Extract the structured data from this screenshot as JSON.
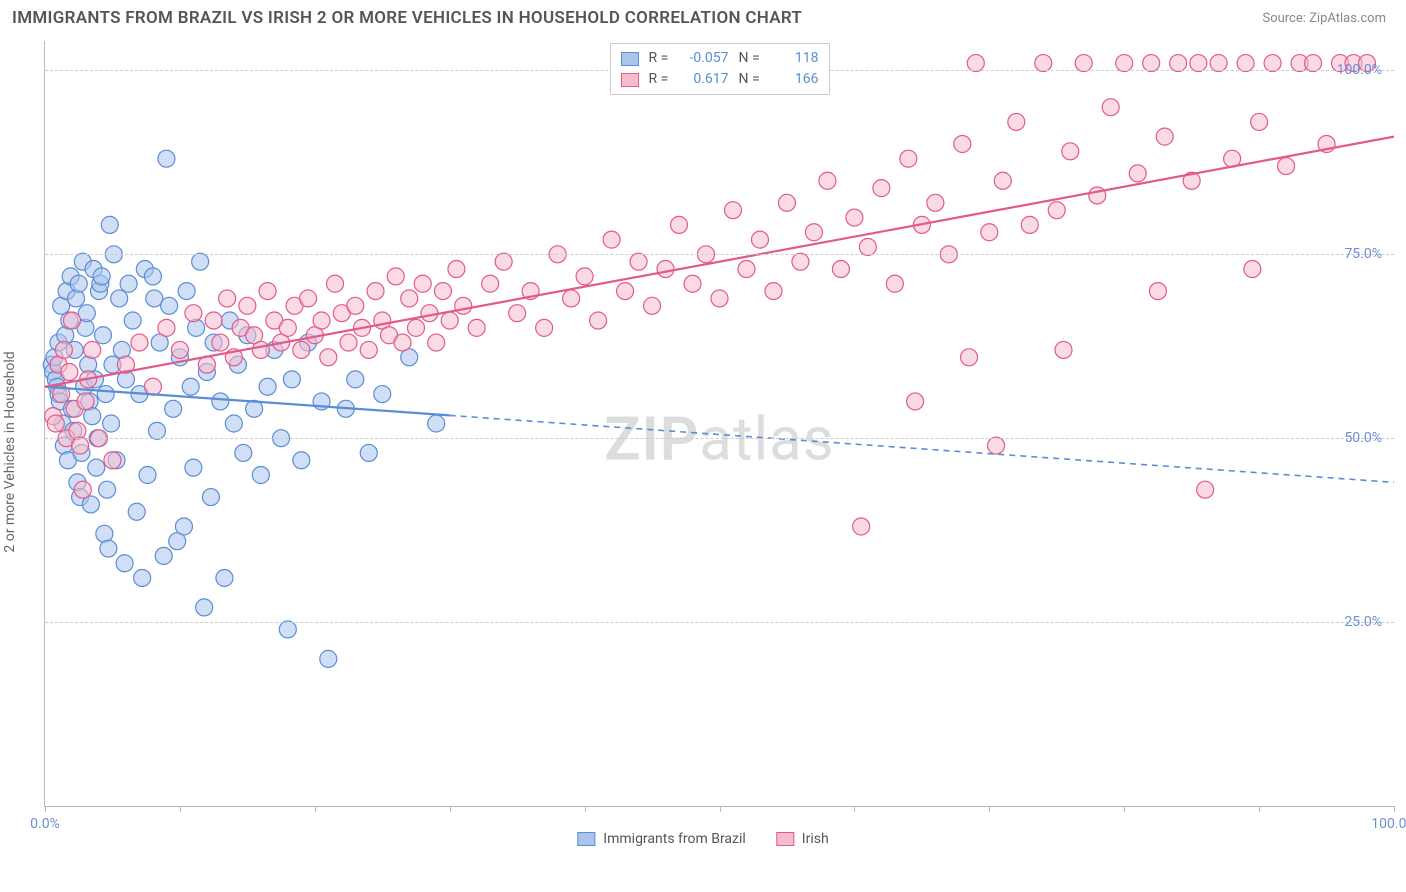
{
  "title": "IMMIGRANTS FROM BRAZIL VS IRISH 2 OR MORE VEHICLES IN HOUSEHOLD CORRELATION CHART",
  "source": "Source: ZipAtlas.com",
  "watermark_bold": "ZIP",
  "watermark_rest": "atlas",
  "ylabel": "2 or more Vehicles in Household",
  "chart": {
    "type": "scatter",
    "background_color": "#ffffff",
    "grid_color": "#cccccc",
    "axis_color": "#bbbbbb",
    "tick_label_color": "#6b8fd4",
    "xlim": [
      0,
      100
    ],
    "ylim": [
      0,
      104
    ],
    "yticks": [
      25,
      50,
      75,
      100
    ],
    "ytick_labels": [
      "25.0%",
      "50.0%",
      "75.0%",
      "100.0%"
    ],
    "xticks": [
      0,
      10,
      20,
      30,
      40,
      50,
      60,
      70,
      80,
      90,
      100
    ],
    "xtick_labels": {
      "0": "0.0%",
      "100": "100.0%"
    },
    "marker_radius": 8.5,
    "marker_opacity": 0.55,
    "marker_stroke_width": 1.2,
    "trend_line_width": 2.2
  },
  "series": [
    {
      "key": "brazil",
      "label": "Immigrants from Brazil",
      "fill": "#a9c5ec",
      "stroke": "#5b8dd6",
      "R_label": "R =",
      "R": "-0.057",
      "N_label": "N =",
      "N": "118",
      "trend": {
        "x1": 0,
        "y1": 57,
        "x2": 100,
        "y2": 44,
        "solid_until_x": 30
      },
      "points": [
        [
          0.5,
          60
        ],
        [
          0.6,
          59
        ],
        [
          0.7,
          61
        ],
        [
          0.8,
          58
        ],
        [
          0.9,
          57
        ],
        [
          1.0,
          56
        ],
        [
          1.0,
          63
        ],
        [
          1.1,
          55
        ],
        [
          1.2,
          68
        ],
        [
          1.3,
          52
        ],
        [
          1.4,
          49
        ],
        [
          1.5,
          64
        ],
        [
          1.6,
          70
        ],
        [
          1.7,
          47
        ],
        [
          1.8,
          66
        ],
        [
          1.9,
          72
        ],
        [
          2.0,
          54
        ],
        [
          2.1,
          51
        ],
        [
          2.2,
          62
        ],
        [
          2.3,
          69
        ],
        [
          2.4,
          44
        ],
        [
          2.5,
          71
        ],
        [
          2.6,
          42
        ],
        [
          2.7,
          48
        ],
        [
          2.8,
          74
        ],
        [
          2.9,
          57
        ],
        [
          3.0,
          65
        ],
        [
          3.1,
          67
        ],
        [
          3.2,
          60
        ],
        [
          3.3,
          55
        ],
        [
          3.4,
          41
        ],
        [
          3.5,
          53
        ],
        [
          3.6,
          73
        ],
        [
          3.7,
          58
        ],
        [
          3.8,
          46
        ],
        [
          3.9,
          50
        ],
        [
          4.0,
          70
        ],
        [
          4.1,
          71
        ],
        [
          4.2,
          72
        ],
        [
          4.3,
          64
        ],
        [
          4.4,
          37
        ],
        [
          4.5,
          56
        ],
        [
          4.6,
          43
        ],
        [
          4.7,
          35
        ],
        [
          4.8,
          79
        ],
        [
          4.9,
          52
        ],
        [
          5.0,
          60
        ],
        [
          5.1,
          75
        ],
        [
          5.3,
          47
        ],
        [
          5.5,
          69
        ],
        [
          5.7,
          62
        ],
        [
          5.9,
          33
        ],
        [
          6.0,
          58
        ],
        [
          6.2,
          71
        ],
        [
          6.5,
          66
        ],
        [
          6.8,
          40
        ],
        [
          7.0,
          56
        ],
        [
          7.2,
          31
        ],
        [
          7.4,
          73
        ],
        [
          7.6,
          45
        ],
        [
          8.0,
          72
        ],
        [
          8.1,
          69
        ],
        [
          8.3,
          51
        ],
        [
          8.5,
          63
        ],
        [
          8.8,
          34
        ],
        [
          9.0,
          88
        ],
        [
          9.2,
          68
        ],
        [
          9.5,
          54
        ],
        [
          9.8,
          36
        ],
        [
          10.0,
          61
        ],
        [
          10.3,
          38
        ],
        [
          10.5,
          70
        ],
        [
          10.8,
          57
        ],
        [
          11.0,
          46
        ],
        [
          11.2,
          65
        ],
        [
          11.5,
          74
        ],
        [
          11.8,
          27
        ],
        [
          12.0,
          59
        ],
        [
          12.3,
          42
        ],
        [
          12.5,
          63
        ],
        [
          13.0,
          55
        ],
        [
          13.3,
          31
        ],
        [
          13.7,
          66
        ],
        [
          14.0,
          52
        ],
        [
          14.3,
          60
        ],
        [
          14.7,
          48
        ],
        [
          15.0,
          64
        ],
        [
          15.5,
          54
        ],
        [
          16.0,
          45
        ],
        [
          16.5,
          57
        ],
        [
          17.0,
          62
        ],
        [
          17.5,
          50
        ],
        [
          18.0,
          24
        ],
        [
          18.3,
          58
        ],
        [
          19.0,
          47
        ],
        [
          19.5,
          63
        ],
        [
          20.5,
          55
        ],
        [
          21.0,
          20
        ],
        [
          22.3,
          54
        ],
        [
          23.0,
          58
        ],
        [
          24.0,
          48
        ],
        [
          25.0,
          56
        ],
        [
          27.0,
          61
        ],
        [
          29.0,
          52
        ]
      ]
    },
    {
      "key": "irish",
      "label": "Irish",
      "fill": "#f5bccd",
      "stroke": "#e35a8a",
      "R_label": "R =",
      "R": "0.617",
      "N_label": "N =",
      "N": "166",
      "trend": {
        "x1": 0,
        "y1": 57,
        "x2": 100,
        "y2": 91,
        "solid_until_x": 100
      },
      "points": [
        [
          0.6,
          53
        ],
        [
          0.8,
          52
        ],
        [
          1.0,
          60
        ],
        [
          1.2,
          56
        ],
        [
          1.4,
          62
        ],
        [
          1.6,
          50
        ],
        [
          1.8,
          59
        ],
        [
          2.0,
          66
        ],
        [
          2.2,
          54
        ],
        [
          2.4,
          51
        ],
        [
          2.6,
          49
        ],
        [
          2.8,
          43
        ],
        [
          3.0,
          55
        ],
        [
          3.2,
          58
        ],
        [
          3.5,
          62
        ],
        [
          4.0,
          50
        ],
        [
          5.0,
          47
        ],
        [
          6.0,
          60
        ],
        [
          7.0,
          63
        ],
        [
          8.0,
          57
        ],
        [
          9.0,
          65
        ],
        [
          10.0,
          62
        ],
        [
          11.0,
          67
        ],
        [
          12.0,
          60
        ],
        [
          12.5,
          66
        ],
        [
          13.0,
          63
        ],
        [
          13.5,
          69
        ],
        [
          14.0,
          61
        ],
        [
          14.5,
          65
        ],
        [
          15.0,
          68
        ],
        [
          15.5,
          64
        ],
        [
          16.0,
          62
        ],
        [
          16.5,
          70
        ],
        [
          17.0,
          66
        ],
        [
          17.5,
          63
        ],
        [
          18.0,
          65
        ],
        [
          18.5,
          68
        ],
        [
          19.0,
          62
        ],
        [
          19.5,
          69
        ],
        [
          20.0,
          64
        ],
        [
          20.5,
          66
        ],
        [
          21.0,
          61
        ],
        [
          21.5,
          71
        ],
        [
          22.0,
          67
        ],
        [
          22.5,
          63
        ],
        [
          23.0,
          68
        ],
        [
          23.5,
          65
        ],
        [
          24.0,
          62
        ],
        [
          24.5,
          70
        ],
        [
          25.0,
          66
        ],
        [
          25.5,
          64
        ],
        [
          26.0,
          72
        ],
        [
          26.5,
          63
        ],
        [
          27.0,
          69
        ],
        [
          27.5,
          65
        ],
        [
          28.0,
          71
        ],
        [
          28.5,
          67
        ],
        [
          29.0,
          63
        ],
        [
          29.5,
          70
        ],
        [
          30.0,
          66
        ],
        [
          30.5,
          73
        ],
        [
          31.0,
          68
        ],
        [
          32.0,
          65
        ],
        [
          33.0,
          71
        ],
        [
          34.0,
          74
        ],
        [
          35.0,
          67
        ],
        [
          36.0,
          70
        ],
        [
          37.0,
          65
        ],
        [
          38.0,
          75
        ],
        [
          39.0,
          69
        ],
        [
          40.0,
          72
        ],
        [
          41.0,
          66
        ],
        [
          42.0,
          77
        ],
        [
          43.0,
          70
        ],
        [
          44.0,
          74
        ],
        [
          45.0,
          68
        ],
        [
          46.0,
          73
        ],
        [
          47.0,
          79
        ],
        [
          48.0,
          71
        ],
        [
          49.0,
          75
        ],
        [
          50.0,
          69
        ],
        [
          51.0,
          81
        ],
        [
          52.0,
          73
        ],
        [
          53.0,
          77
        ],
        [
          54.0,
          70
        ],
        [
          55.0,
          82
        ],
        [
          56.0,
          74
        ],
        [
          57.0,
          78
        ],
        [
          58.0,
          85
        ],
        [
          59.0,
          73
        ],
        [
          60.0,
          80
        ],
        [
          60.5,
          38
        ],
        [
          61.0,
          76
        ],
        [
          62.0,
          84
        ],
        [
          63.0,
          71
        ],
        [
          64.0,
          88
        ],
        [
          64.5,
          55
        ],
        [
          65.0,
          79
        ],
        [
          66.0,
          82
        ],
        [
          67.0,
          75
        ],
        [
          68.0,
          90
        ],
        [
          68.5,
          61
        ],
        [
          69.0,
          101
        ],
        [
          70.0,
          78
        ],
        [
          70.5,
          49
        ],
        [
          71.0,
          85
        ],
        [
          72.0,
          93
        ],
        [
          73.0,
          79
        ],
        [
          74.0,
          101
        ],
        [
          75.0,
          81
        ],
        [
          75.5,
          62
        ],
        [
          76.0,
          89
        ],
        [
          77.0,
          101
        ],
        [
          78.0,
          83
        ],
        [
          79.0,
          95
        ],
        [
          80.0,
          101
        ],
        [
          81.0,
          86
        ],
        [
          82.0,
          101
        ],
        [
          82.5,
          70
        ],
        [
          83.0,
          91
        ],
        [
          84.0,
          101
        ],
        [
          85.0,
          85
        ],
        [
          85.5,
          101
        ],
        [
          86.0,
          43
        ],
        [
          87.0,
          101
        ],
        [
          88.0,
          88
        ],
        [
          89.0,
          101
        ],
        [
          89.5,
          73
        ],
        [
          90.0,
          93
        ],
        [
          91.0,
          101
        ],
        [
          92.0,
          87
        ],
        [
          93.0,
          101
        ],
        [
          94.0,
          101
        ],
        [
          95.0,
          90
        ],
        [
          96.0,
          101
        ],
        [
          97.0,
          101
        ],
        [
          98.0,
          101
        ]
      ]
    }
  ]
}
